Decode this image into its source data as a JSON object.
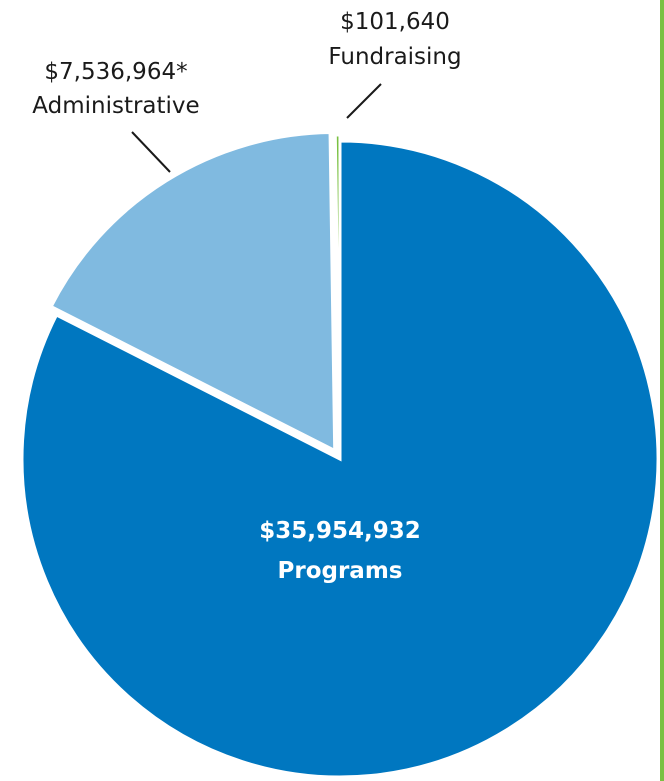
{
  "chart_data": {
    "type": "pie",
    "slices": [
      {
        "category": "Programs",
        "value": 35954932,
        "label_value": "$35,954,932",
        "color": "#0077c0"
      },
      {
        "category": "Administrative",
        "value": 7536964,
        "label_value": "$7,536,964*",
        "color": "#80bae0"
      },
      {
        "category": "Fundraising",
        "value": 101640,
        "label_value": "$101,640",
        "color": "#7ac142"
      }
    ],
    "accent_color": "#7ac142"
  }
}
